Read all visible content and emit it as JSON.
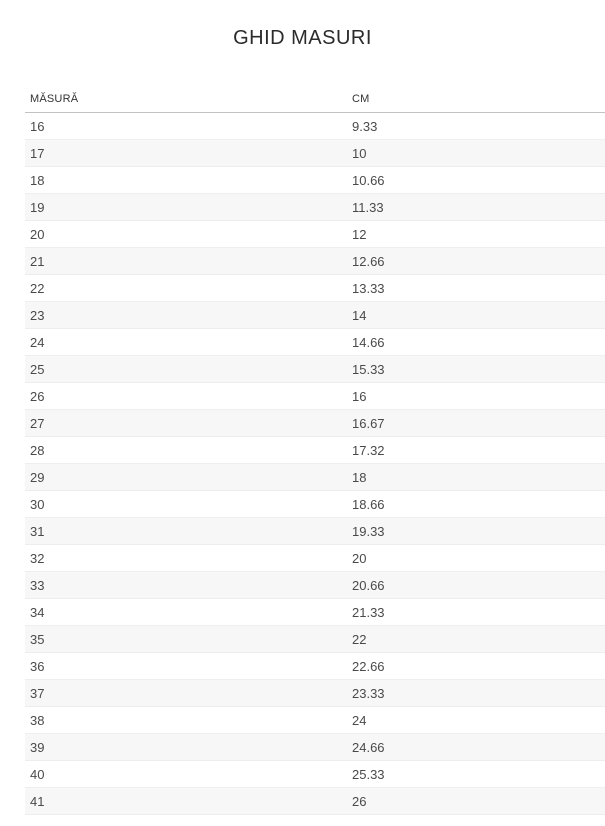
{
  "page": {
    "title": "GHID MASURI"
  },
  "table": {
    "columns": [
      {
        "key": "size",
        "label": "MĂSURĂ"
      },
      {
        "key": "cm",
        "label": "CM"
      }
    ],
    "rows": [
      {
        "size": "16",
        "cm": "9.33"
      },
      {
        "size": "17",
        "cm": "10"
      },
      {
        "size": "18",
        "cm": "10.66"
      },
      {
        "size": "19",
        "cm": "11.33"
      },
      {
        "size": "20",
        "cm": "12"
      },
      {
        "size": "21",
        "cm": "12.66"
      },
      {
        "size": "22",
        "cm": "13.33"
      },
      {
        "size": "23",
        "cm": "14"
      },
      {
        "size": "24",
        "cm": "14.66"
      },
      {
        "size": "25",
        "cm": "15.33"
      },
      {
        "size": "26",
        "cm": "16"
      },
      {
        "size": "27",
        "cm": "16.67"
      },
      {
        "size": "28",
        "cm": "17.32"
      },
      {
        "size": "29",
        "cm": "18"
      },
      {
        "size": "30",
        "cm": "18.66"
      },
      {
        "size": "31",
        "cm": "19.33"
      },
      {
        "size": "32",
        "cm": "20"
      },
      {
        "size": "33",
        "cm": "20.66"
      },
      {
        "size": "34",
        "cm": "21.33"
      },
      {
        "size": "35",
        "cm": "22"
      },
      {
        "size": "36",
        "cm": "22.66"
      },
      {
        "size": "37",
        "cm": "23.33"
      },
      {
        "size": "38",
        "cm": "24"
      },
      {
        "size": "39",
        "cm": "24.66"
      },
      {
        "size": "40",
        "cm": "25.33"
      },
      {
        "size": "41",
        "cm": "26"
      }
    ]
  },
  "colors": {
    "row_alt_bg": "#f7f7f7",
    "header_border": "#c2c2c2",
    "row_border": "#efefef",
    "cell_text": "#4a4a4a",
    "title_text": "#2b2b2b"
  }
}
